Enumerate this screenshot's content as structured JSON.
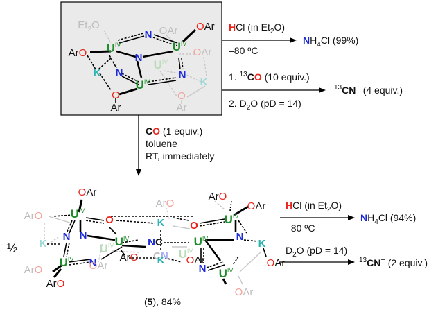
{
  "colors": {
    "uranium": "#1e8c2a",
    "nitrogen": "#1c2bd6",
    "oxygen": "#e8251b",
    "potassium": "#2bb3b0",
    "bond": "#000000",
    "faded": "#bdbdbd",
    "box_fill": "#eaeaea",
    "text": "#111111"
  },
  "labels": {
    "U": "U",
    "IV": "IV",
    "N": "N",
    "O": "O",
    "K": "K",
    "C": "C",
    "Ar": "Ar",
    "OAr": "OAr",
    "ArO": "ArO",
    "Et2O_main": "Et",
    "Et2O_sub": "2",
    "Et2O_tail": "O",
    "NC_link": "N≡C"
  },
  "reaction_top": {
    "reagent_H": "H",
    "reagent_rest": "Cl (in Et",
    "reagent_sub": "2",
    "reagent_close": "O)",
    "condition": "–80 ºC",
    "product_N": "N",
    "product_H": "H",
    "product_sub": "4",
    "product_rest": "Cl (99%)"
  },
  "reaction_mid": {
    "step1_prefix": "1. ",
    "step1_iso": "13",
    "step1_C": "C",
    "step1_O": "O",
    "step1_rest": " (10 equiv.)",
    "step2_prefix": "2. D",
    "step2_sub": "2",
    "step2_rest": "O (pD = 14)",
    "product_iso": "13",
    "product_C": "C",
    "product_N": "N",
    "product_charge": "−",
    "product_rest": " (4 equiv.)"
  },
  "reaction_down": {
    "reagent_C": "C",
    "reagent_O": "O",
    "reagent_rest": " (1 equiv.)",
    "solvent": "toluene",
    "time": "RT, immediately"
  },
  "reaction_bottom_top": {
    "reagent_H": "H",
    "reagent_rest": "Cl (in Et",
    "reagent_sub": "2",
    "reagent_close": "O)",
    "condition": "–80 ºC",
    "product_N": "N",
    "product_H": "H",
    "product_sub": "4",
    "product_rest": "Cl (94%)"
  },
  "reaction_bottom_low": {
    "reagent_D": "D",
    "reagent_sub": "2",
    "reagent_rest": "O (pD = 14)",
    "product_iso": "13",
    "product_C": "C",
    "product_N": "N",
    "product_charge": "−",
    "product_rest": " (2 equiv.)"
  },
  "product": {
    "half": "½",
    "label_open": "(",
    "label_num": "5",
    "label_close": "), 84%"
  }
}
